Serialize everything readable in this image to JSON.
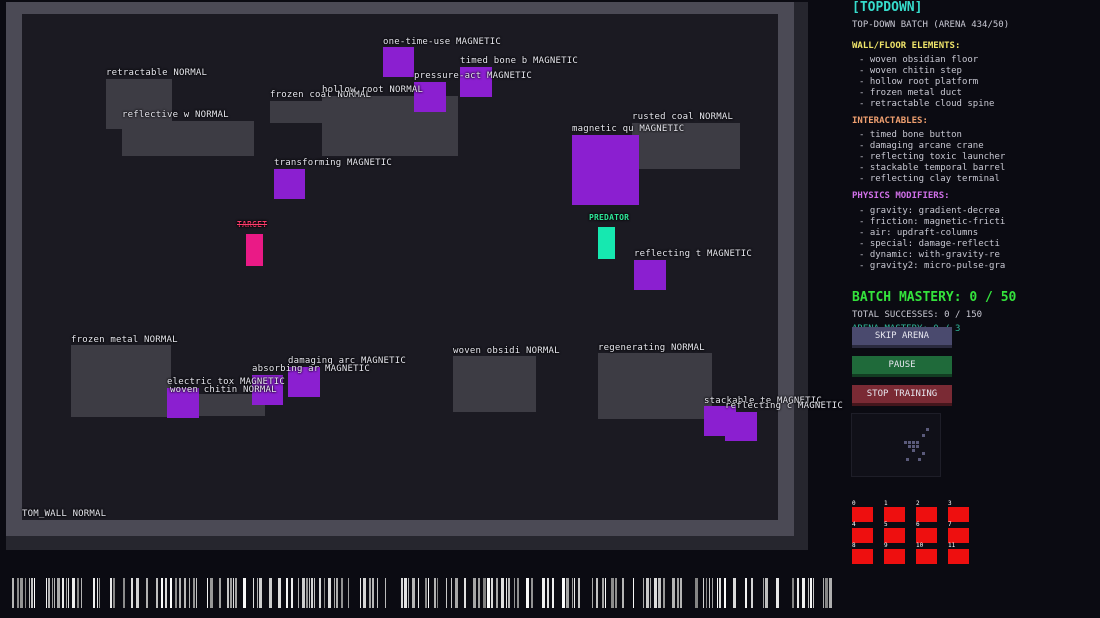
{
  "hud": {
    "mode": "[TOPDOWN]",
    "batch": "TOP-DOWN BATCH (ARENA 434/50)",
    "walls_heading": "WALL/FLOOR ELEMENTS:",
    "walls": [
      "- woven obsidian floor",
      "- woven chitin step",
      "- hollow root platform",
      "- frozen metal duct",
      "- retractable cloud spine"
    ],
    "interactables_heading": "INTERACTABLES:",
    "interactables": [
      "- timed bone button",
      "- damaging arcane crane",
      "- reflecting toxic launcher",
      "- stackable temporal barrel",
      "- reflecting clay terminal"
    ],
    "physics_heading": "PHYSICS MODIFIERS:",
    "physics": [
      "- gravity: gradient-decrea",
      "- friction: magnetic-fricti",
      "- air: updraft-columns",
      "- special: damage-reflecti",
      "- dynamic: with-gravity-re",
      "- gravity2: micro-pulse-gra"
    ],
    "mastery": "BATCH MASTERY: 0 / 50",
    "total_successes": "TOTAL SUCCESSES: 0 / 150",
    "arena_mastery": "ARENA MASTERY: 0 / 3",
    "buttons": {
      "skip": "SKIP ARENA",
      "pause": "PAUSE",
      "stop": "STOP TRAINING"
    },
    "agent_slots": [
      "0",
      "1",
      "2",
      "3",
      "4",
      "5",
      "6",
      "7",
      "8",
      "9",
      "10",
      "11"
    ],
    "colors": {
      "accent": "#36dccc",
      "mastery": "#34e23c",
      "magnetic": "#8b1fd0",
      "target": "#ea1a86",
      "predator": "#16e8b0",
      "slot": "#ee0f0f"
    }
  },
  "arena": {
    "walls": [
      {
        "label": "retractable  NORMAL"
      },
      {
        "label": "reflective w NORMAL"
      },
      {
        "label": "frozen coal  NORMAL"
      },
      {
        "label": "hollow root  NORMAL"
      },
      {
        "label": "rusted coal  NORMAL"
      },
      {
        "label": "frozen metal NORMAL"
      },
      {
        "label": "woven chitin NORMAL"
      },
      {
        "label": "woven obsidi NORMAL"
      },
      {
        "label": "regenerating NORMAL"
      },
      {
        "label": "TOM_WALL NORMAL"
      }
    ],
    "magnetic": [
      {
        "label": "one-time-use MAGNETIC"
      },
      {
        "label": "timed bone b MAGNETIC"
      },
      {
        "label": "pressure-act MAGNETIC"
      },
      {
        "label": "magnetic qu MAGNETIC"
      },
      {
        "label": "transforming MAGNETIC"
      },
      {
        "label": "reflecting t MAGNETIC"
      },
      {
        "label": "damaging arc MAGNETIC"
      },
      {
        "label": "absorbing ar MAGNETIC"
      },
      {
        "label": "electric tox MAGNETIC"
      },
      {
        "label": "stackable te MAGNETIC"
      },
      {
        "label": "reflecting c MAGNETIC"
      }
    ],
    "target_label": "TARGET",
    "predator_label": "PREDATOR"
  }
}
